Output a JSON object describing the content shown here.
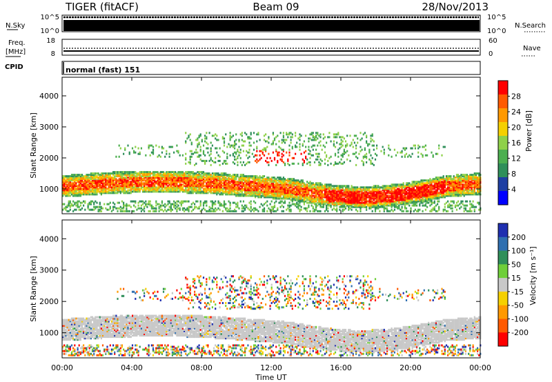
{
  "header": {
    "site": "TIGER (fitACF)",
    "beam": "Beam 09",
    "date": "28/Nov/2013"
  },
  "strips": {
    "nsky": {
      "label": "N.Sky",
      "ticks": [
        "10^5",
        "10^0"
      ]
    },
    "nsearch": {
      "label": "N.Search",
      "ticks": [
        "10^5",
        "10^0"
      ]
    },
    "freq": {
      "label_line1": "Freq.",
      "label_line2": "[MHz]",
      "ticks": [
        "18",
        "8"
      ]
    },
    "nave": {
      "label": "Nave",
      "ticks": [
        "60",
        "0"
      ]
    },
    "cpid": {
      "label": "CPID",
      "value": "normal (fast) 151"
    }
  },
  "colors": {
    "power_scale": [
      "#0000ff",
      "#1f3fa3",
      "#2f8f5a",
      "#4caf50",
      "#8fd14a",
      "#f5d000",
      "#ff9900",
      "#ff5a00",
      "#ff0000"
    ],
    "velocity_scale": [
      "#1f2fb0",
      "#2f6fb0",
      "#2f8f5a",
      "#6fcf3a",
      "#c8c8c8",
      "#f5d000",
      "#ff9900",
      "#ff5a00",
      "#ff0000"
    ]
  },
  "chart_data": [
    {
      "type": "heatmap",
      "name": "power",
      "xlabel": "",
      "ylabel": "Slant Range [km]",
      "ylim": [
        200,
        4600
      ],
      "xlim_hours": [
        0,
        24
      ],
      "y_ticks": [
        "1000",
        "2000",
        "3000",
        "4000"
      ],
      "colorbar": {
        "label": "Power [dB]",
        "ticks": [
          "4",
          "8",
          "12",
          "16",
          "20",
          "24",
          "28"
        ],
        "range": [
          0,
          32
        ]
      },
      "features": [
        {
          "x_hours": [
            0,
            24
          ],
          "y_km": [
            700,
            1400
          ],
          "description": "main echo band"
        },
        {
          "x_hours": [
            11,
            14
          ],
          "y_km": [
            1800,
            2200
          ]
        },
        {
          "x_hours": [
            14,
            22
          ],
          "y_km": [
            600,
            1300
          ]
        }
      ]
    },
    {
      "type": "heatmap",
      "name": "velocity",
      "xlabel": "Time UT",
      "ylabel": "Slant Range [km]",
      "ylim": [
        200,
        4600
      ],
      "xlim_hours": [
        0,
        24
      ],
      "y_ticks": [
        "1000",
        "2000",
        "3000",
        "4000"
      ],
      "colorbar": {
        "label": "Velocity [m s⁻¹]",
        "ticks": [
          "200",
          "100",
          "50",
          "15",
          "-15",
          "-50",
          "-100",
          "-200"
        ],
        "range": [
          -250,
          250
        ]
      }
    }
  ],
  "x_ticks": [
    "00:00",
    "04:00",
    "08:00",
    "12:00",
    "16:00",
    "20:00",
    "00:00"
  ],
  "x_title": "Time UT"
}
